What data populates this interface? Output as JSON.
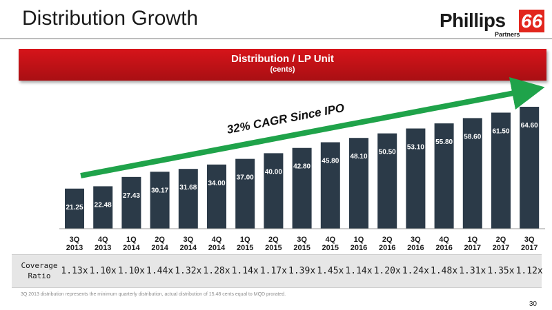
{
  "slide": {
    "title": "Distribution Growth",
    "page_number": "30",
    "footnote": "3Q 2013 distribution represents the minimum quarterly distribution, actual distribution of 15.48 cents equal to MQD prorated."
  },
  "logo": {
    "brand": "Phillips",
    "number": "66",
    "sub": "Partners"
  },
  "banner": {
    "title": "Distribution / LP Unit",
    "subtitle": "(cents)"
  },
  "annotation": {
    "text": "32% CAGR Since IPO"
  },
  "coverage": {
    "label_line1": "Coverage",
    "label_line2": "Ratio",
    "values": [
      "1.13x",
      "1.10x",
      "1.10x",
      "1.44x",
      "1.32x",
      "1.28x",
      "1.14x",
      "1.17x",
      "1.39x",
      "1.45x",
      "1.14x",
      "1.20x",
      "1.24x",
      "1.48x",
      "1.31x",
      "1.35x",
      "1.12x"
    ]
  },
  "colors": {
    "bar": "#2b3a48",
    "banner": "#c8161c",
    "arrow": "#1fa34a",
    "label": "#ffffff"
  },
  "chart_data": {
    "type": "bar",
    "title": "Distribution / LP Unit",
    "subtitle": "(cents)",
    "categories": [
      "3Q 2013",
      "4Q 2013",
      "1Q 2014",
      "2Q 2014",
      "3Q 2014",
      "4Q 2014",
      "1Q 2015",
      "2Q 2015",
      "3Q 2015",
      "4Q 2015",
      "1Q 2016",
      "2Q 2016",
      "3Q 2016",
      "4Q 2016",
      "1Q 2017",
      "2Q 2017",
      "3Q 2017"
    ],
    "category_lines": [
      [
        "3Q",
        "2013"
      ],
      [
        "4Q",
        "2013"
      ],
      [
        "1Q",
        "2014"
      ],
      [
        "2Q",
        "2014"
      ],
      [
        "3Q",
        "2014"
      ],
      [
        "4Q",
        "2014"
      ],
      [
        "1Q",
        "2015"
      ],
      [
        "2Q",
        "2015"
      ],
      [
        "3Q",
        "2015"
      ],
      [
        "4Q",
        "2015"
      ],
      [
        "1Q",
        "2016"
      ],
      [
        "2Q",
        "2016"
      ],
      [
        "3Q",
        "2016"
      ],
      [
        "4Q",
        "2016"
      ],
      [
        "1Q",
        "2017"
      ],
      [
        "2Q",
        "2017"
      ],
      [
        "3Q",
        "2017"
      ]
    ],
    "values": [
      21.25,
      22.48,
      27.43,
      30.17,
      31.68,
      34.0,
      37.0,
      40.0,
      42.8,
      45.8,
      48.1,
      50.5,
      53.1,
      55.8,
      58.6,
      61.5,
      64.6
    ],
    "data_labels": [
      "21.25",
      "22.48",
      "27.43",
      "30.17",
      "31.68",
      "34.00",
      "37.00",
      "40.00",
      "42.80",
      "45.80",
      "48.10",
      "50.50",
      "53.10",
      "55.80",
      "58.60",
      "61.50",
      "64.60"
    ],
    "ylim": [
      0,
      64.6
    ],
    "grid": false,
    "legend": "none"
  }
}
